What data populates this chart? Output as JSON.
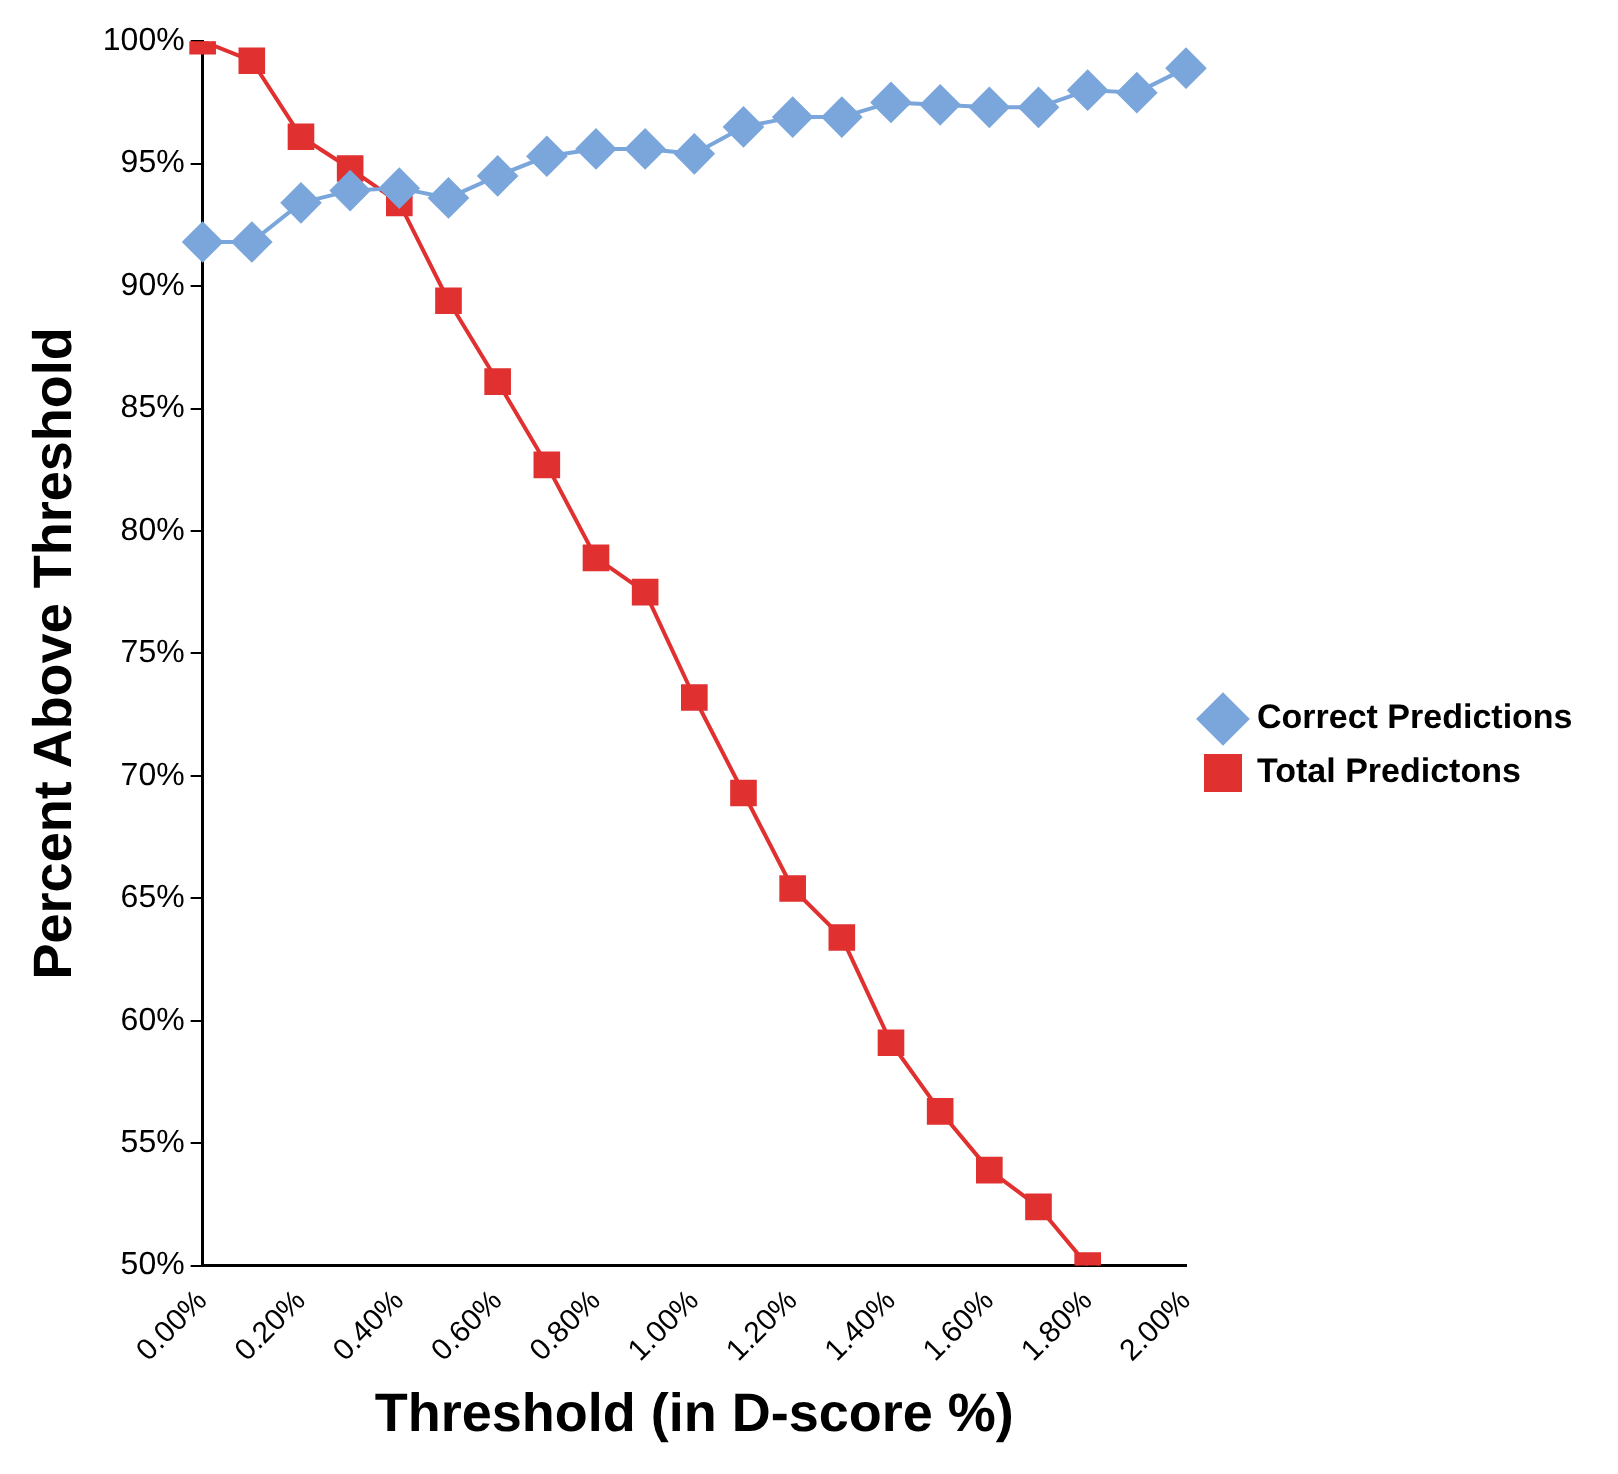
{
  "chart_data": {
    "type": "line",
    "xlabel": "Threshold (in D-score %)",
    "ylabel": "Percent Above Threshold",
    "categories": [
      "0.00%",
      null,
      "0.20%",
      null,
      "0.40%",
      null,
      "0.60%",
      null,
      "0.80%",
      null,
      "1.00%",
      null,
      "1.20%",
      null,
      "1.40%",
      null,
      "1.60%",
      null,
      "1.80%",
      null,
      "2.00%"
    ],
    "series": [
      {
        "name": "Correct Predictions",
        "color": "#7aa6dc",
        "marker": "diamond",
        "values": [
          91.8,
          91.8,
          93.4,
          93.9,
          94.0,
          93.6,
          94.5,
          95.3,
          95.6,
          95.6,
          95.4,
          96.5,
          96.9,
          96.9,
          97.5,
          97.4,
          97.3,
          97.3,
          98.0,
          97.9,
          98.9
        ]
      },
      {
        "name": "Total Predictons",
        "color": "#e03030",
        "marker": "square",
        "values": [
          100,
          99.2,
          96.1,
          94.8,
          93.4,
          89.4,
          86.1,
          82.7,
          78.9,
          77.5,
          73.2,
          69.3,
          65.4,
          63.4,
          59.1,
          56.3,
          53.9,
          52.4,
          50.0,
          null,
          null
        ]
      }
    ],
    "ylim": [
      50,
      100
    ],
    "yticks": [
      {
        "value": 50,
        "label": "50%"
      },
      {
        "value": 55,
        "label": "55%"
      },
      {
        "value": 60,
        "label": "60%"
      },
      {
        "value": 65,
        "label": "65%"
      },
      {
        "value": 70,
        "label": "70%"
      },
      {
        "value": 75,
        "label": "75%"
      },
      {
        "value": 80,
        "label": "80%"
      },
      {
        "value": 85,
        "label": "85%"
      },
      {
        "value": 90,
        "label": "90%"
      },
      {
        "value": 95,
        "label": "95%"
      },
      {
        "value": 100,
        "label": "100%"
      }
    ],
    "grid": false,
    "legend": "right",
    "line_style": "solid"
  }
}
